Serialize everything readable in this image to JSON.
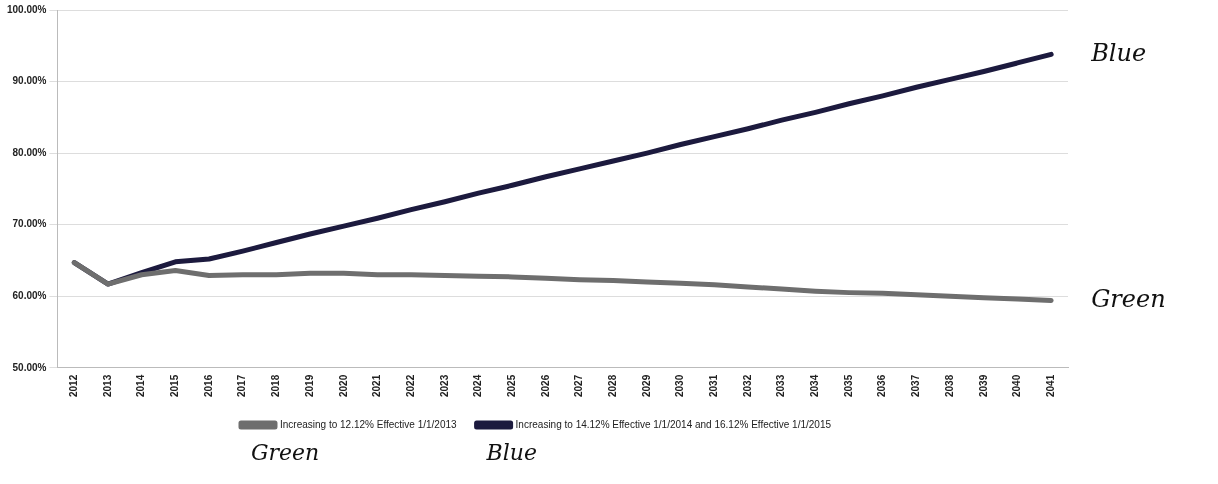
{
  "chart_data": {
    "type": "line",
    "categories": [
      "2012",
      "2013",
      "2014",
      "2015",
      "2016",
      "2017",
      "2018",
      "2019",
      "2020",
      "2021",
      "2022",
      "2023",
      "2024",
      "2025",
      "2026",
      "2027",
      "2028",
      "2029",
      "2030",
      "2031",
      "2032",
      "2033",
      "2034",
      "2035",
      "2036",
      "2037",
      "2038",
      "2039",
      "2040",
      "2041"
    ],
    "series": [
      {
        "name": "Increasing to 12.12% Effective 1/1/2013",
        "color": "#6e6e6e",
        "values": [
          64.7,
          61.7,
          63.0,
          63.6,
          62.9,
          63.0,
          63.0,
          63.2,
          63.2,
          63.0,
          63.0,
          62.9,
          62.8,
          62.7,
          62.5,
          62.3,
          62.2,
          62.0,
          61.8,
          61.6,
          61.3,
          61.0,
          60.7,
          60.5,
          60.4,
          60.2,
          60.0,
          59.8,
          59.6,
          59.4
        ]
      },
      {
        "name": "Increasing to 14.12% Effective 1/1/2014 and 16.12% Effective 1/1/2015",
        "color": "#1c1a3e",
        "values": [
          64.7,
          61.7,
          63.3,
          64.8,
          65.2,
          66.3,
          67.5,
          68.7,
          69.8,
          70.9,
          72.1,
          73.2,
          74.4,
          75.5,
          76.7,
          77.8,
          78.9,
          80.0,
          81.2,
          82.3,
          83.4,
          84.6,
          85.7,
          86.9,
          88.0,
          89.2,
          90.3,
          91.4,
          92.6,
          93.8
        ]
      }
    ],
    "ylim": [
      50,
      100
    ],
    "yticks": [
      {
        "value": 50,
        "label": "50.00%"
      },
      {
        "value": 60,
        "label": "60.00%"
      },
      {
        "value": 70,
        "label": "70.00%"
      },
      {
        "value": 80,
        "label": "80.00%"
      },
      {
        "value": 90,
        "label": "90.00%"
      },
      {
        "value": 100,
        "label": "100.00%"
      }
    ],
    "grid": "y",
    "legend": "bottom",
    "marker": "none",
    "line_style": "solid",
    "annotations": [
      {
        "text": "Blue",
        "x": "2041",
        "y": 93.8
      },
      {
        "text": "Green",
        "x": "2041",
        "y": 59.4
      },
      "Green",
      "Blue"
    ]
  }
}
